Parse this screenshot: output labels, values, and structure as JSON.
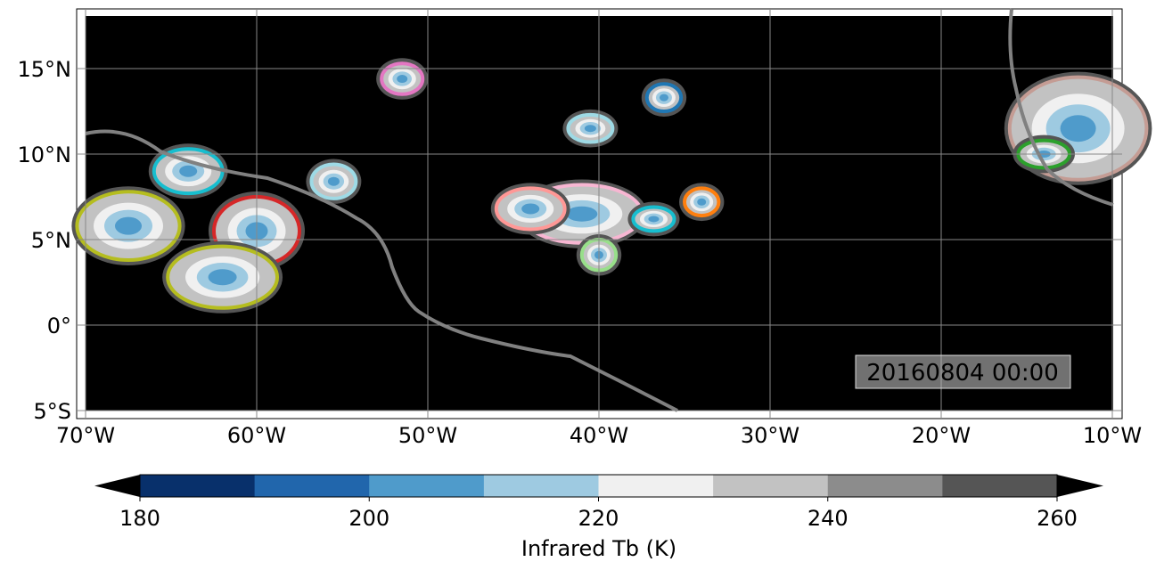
{
  "map": {
    "lon_ticks": [
      "70°W",
      "60°W",
      "50°W",
      "40°W",
      "30°W",
      "20°W",
      "10°W"
    ],
    "lat_ticks": [
      "15°N",
      "10°N",
      "5°N",
      "0°",
      "5°S"
    ],
    "lon_values": [
      -70,
      -60,
      -50,
      -40,
      -30,
      -20,
      -10
    ],
    "lat_values": [
      15,
      10,
      5,
      0,
      -5
    ],
    "extent": {
      "lon": [
        -70,
        -10
      ],
      "lat": [
        -5,
        18
      ]
    },
    "timestamp": "20160804 00:00",
    "background_color": "#000000",
    "coastline_color": "#808080"
  },
  "colorbar": {
    "label": "Infrared Tb (K)",
    "ticks": [
      "180",
      "200",
      "220",
      "240",
      "260"
    ],
    "tick_values": [
      180,
      200,
      220,
      240,
      260
    ],
    "levels": [
      180,
      190,
      200,
      210,
      220,
      230,
      240,
      250,
      260
    ],
    "colors": [
      "#08306b",
      "#2166ac",
      "#4f9bcb",
      "#9ecae1",
      "#f0f0f0",
      "#c2c2c2",
      "#8c8c8c",
      "#555555"
    ],
    "extend_low_color": "#000000",
    "extend_high_color": "#000000"
  }
}
